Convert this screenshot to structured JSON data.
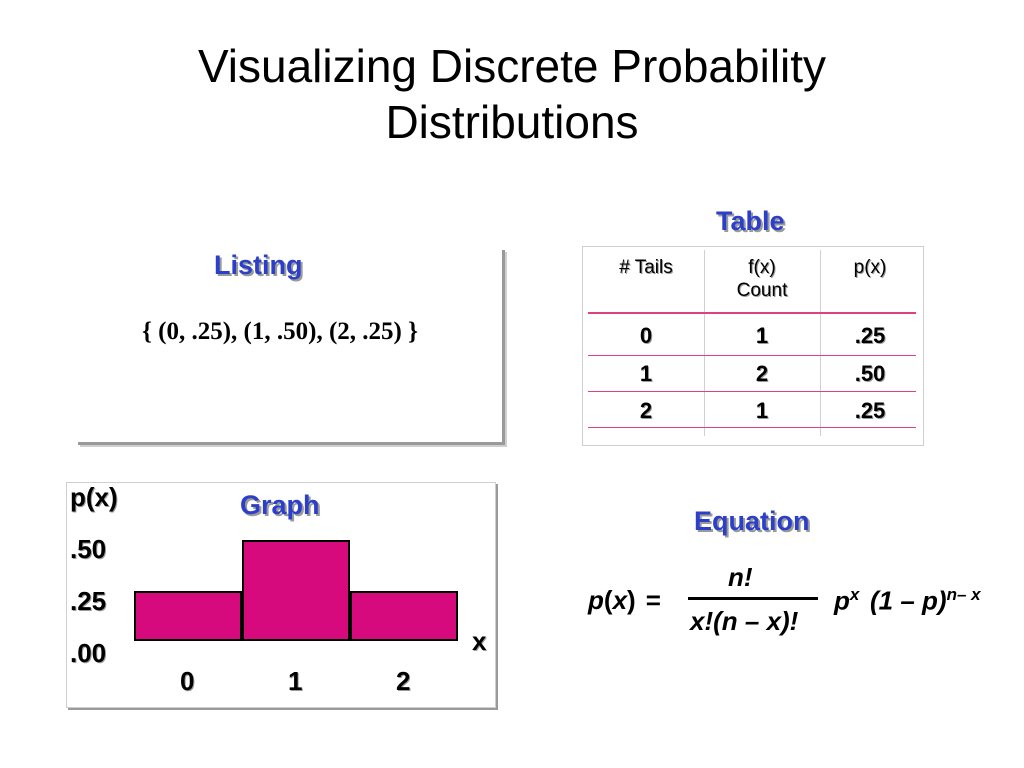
{
  "title": {
    "line1": "Visualizing Discrete Probability",
    "line2": "Distributions"
  },
  "listing": {
    "heading": "Listing",
    "text": "{ (0, .25), (1, .50), (2, .25) }"
  },
  "table": {
    "heading": "Table",
    "headers": [
      "# Tails",
      "f(x)",
      "Count",
      "p(x)"
    ],
    "rows": [
      [
        "0",
        "1",
        ".25"
      ],
      [
        "1",
        "2",
        ".50"
      ],
      [
        "2",
        "1",
        ".25"
      ]
    ]
  },
  "graph": {
    "heading": "Graph",
    "ylabel": "p(x)",
    "xlabel": "x",
    "yticks": [
      ".50",
      ".25",
      ".00"
    ],
    "xticks": [
      "0",
      "1",
      "2"
    ],
    "bar_color": "#d60a7d"
  },
  "chart_data": {
    "type": "bar",
    "categories": [
      "0",
      "1",
      "2"
    ],
    "values": [
      0.25,
      0.5,
      0.25
    ],
    "title": "Graph",
    "xlabel": "x",
    "ylabel": "p(x)",
    "ylim": [
      0,
      0.5
    ]
  },
  "equation": {
    "heading": "Equation",
    "lhs_p": "p",
    "lhs_x": "x",
    "numerator": "n!",
    "denominator": "x!(n – x)!",
    "p": "p",
    "x_exp": "x",
    "term": "(1 – p)",
    "exp2": "n– x"
  }
}
